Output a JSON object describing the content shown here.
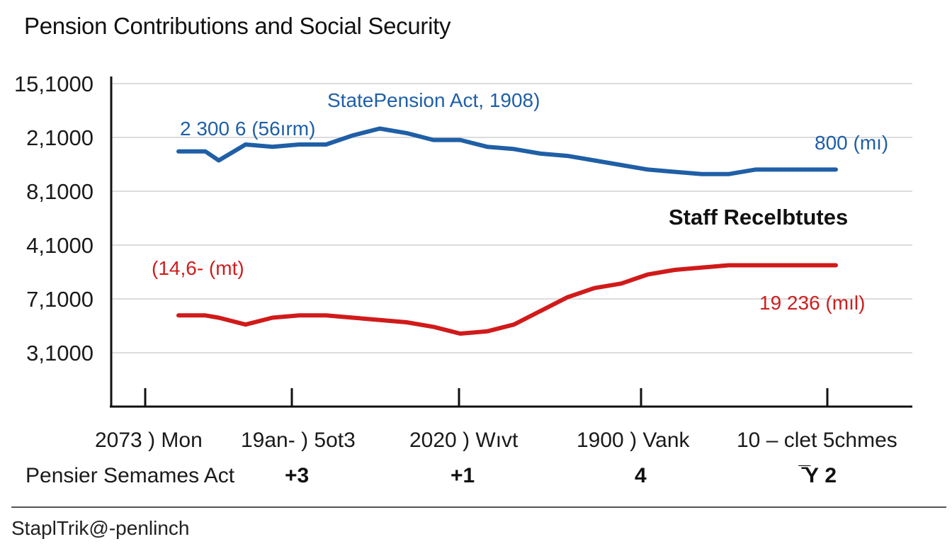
{
  "chart_data": {
    "type": "line",
    "title": "Pension Contributions and Social Security",
    "y_tick_labels": [
      "15,1000",
      "2,1000",
      "8,1000",
      "4,1000",
      "7,1000",
      "3,1000"
    ],
    "ylim": [
      0,
      7
    ],
    "x_tick_labels": [
      "2073 ) Mon",
      "19an- ) 5ot3",
      "2020 ) Wıvt",
      "1900 ) Vank",
      "10 – clet 5chmes"
    ],
    "x_secondary_labels": [
      "Pensier Semames Act",
      "+3",
      "+1",
      "4",
      "̄̅Υ 2"
    ],
    "xlim": [
      0,
      25
    ],
    "grid": true,
    "series": [
      {
        "color": "#1f5fa6",
        "x": [
          0,
          1,
          1.5,
          2.5,
          3.5,
          4.5,
          5.5,
          6.5,
          7.5,
          8.5,
          9.5,
          10.5,
          11.5,
          12.5,
          13.5,
          14.5,
          15.5,
          16.5,
          17.5,
          18.5,
          19.5,
          20.5,
          21.5,
          22.5,
          23.5,
          24.5
        ],
        "values": [
          5.6,
          5.6,
          5.4,
          5.75,
          5.7,
          5.75,
          5.75,
          5.95,
          6.1,
          6.0,
          5.85,
          5.85,
          5.7,
          5.65,
          5.55,
          5.5,
          5.4,
          5.3,
          5.2,
          5.15,
          5.1,
          5.1,
          5.2,
          5.2,
          5.2,
          5.2
        ]
      },
      {
        "color": "#d11a1a",
        "x": [
          0,
          1,
          1.5,
          2.5,
          3.5,
          4.5,
          5.5,
          6.5,
          7.5,
          8.5,
          9.5,
          10.5,
          11.5,
          12.5,
          13.5,
          14.5,
          15.5,
          16.5,
          17.5,
          18.5,
          19.5,
          20.5,
          21.5,
          22.5,
          23.5,
          24.5
        ],
        "values": [
          2.0,
          2.0,
          1.95,
          1.8,
          1.95,
          2.0,
          2.0,
          1.95,
          1.9,
          1.85,
          1.75,
          1.6,
          1.65,
          1.8,
          2.1,
          2.4,
          2.6,
          2.7,
          2.9,
          3.0,
          3.05,
          3.1,
          3.1,
          3.1,
          3.1,
          3.1
        ]
      }
    ],
    "annotations": [
      {
        "text": "StatePension Act, 1908)",
        "color": "#1f5fa6"
      },
      {
        "text": "2 300 6 (56ırm)",
        "color": "#1f5fa6"
      },
      {
        "text": "800 (mı)",
        "color": "#1f5fa6"
      },
      {
        "text": "Staff Recelbtutes",
        "color": "#111111"
      },
      {
        "text": "(14,6- (mt)",
        "color": "#cc1f1f"
      },
      {
        "text": "19 236 (mıl)",
        "color": "#cc1f1f"
      }
    ]
  },
  "footer": {
    "text": "StaplTrik@-penlinch"
  }
}
